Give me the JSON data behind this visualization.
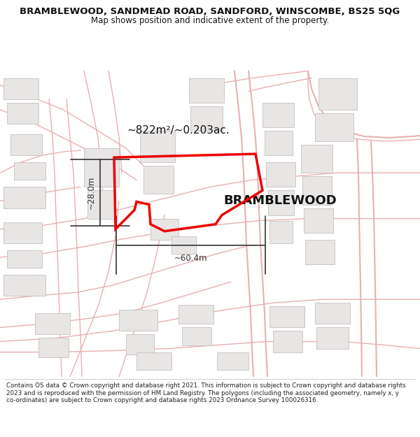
{
  "title_line1": "BRAMBLEWOOD, SANDMEAD ROAD, SANDFORD, WINSCOMBE, BS25 5QG",
  "title_line2": "Map shows position and indicative extent of the property.",
  "property_label": "BRAMBLEWOOD",
  "area_label": "~822m²/~0.203ac.",
  "dim_vertical": "~28.0m",
  "dim_horizontal": "~60.4m",
  "footer_text": "Contains OS data © Crown copyright and database right 2021. This information is subject to Crown copyright and database rights 2023 and is reproduced with the permission of HM Land Registry. The polygons (including the associated geometry, namely x, y co-ordinates) are subject to Crown copyright and database rights 2023 Ordnance Survey 100026316.",
  "bg_color": "#ffffff",
  "map_bg": "#faf8f8",
  "road_color": "#e8b0b0",
  "building_fill": "#e8e5e5",
  "building_edge": "#c8c0c0",
  "property_color": "#ee0000",
  "dim_color": "#333333",
  "title_color": "#111111",
  "title_fontsize": 9.5,
  "subtitle_fontsize": 8.5,
  "footer_fontsize": 6.3
}
